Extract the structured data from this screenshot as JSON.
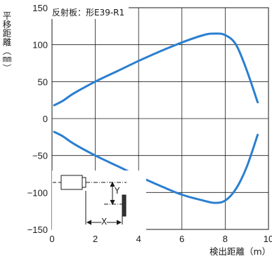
{
  "chart_data": {
    "type": "line",
    "annotation": "反射板：形E39-R1",
    "xlabel": "検出距離（m）",
    "ylabel": "平移距離（㎜）",
    "xlim": [
      0,
      10
    ],
    "ylim": [
      -150,
      150
    ],
    "x_ticks": [
      0,
      2,
      4,
      6,
      8,
      10
    ],
    "y_ticks": [
      150,
      100,
      50,
      0,
      -50,
      -100,
      -150
    ],
    "x_tick_labels": [
      "0",
      "2",
      "4",
      "6",
      "8",
      "10"
    ],
    "y_tick_labels": [
      "150",
      "100",
      "50",
      "0",
      "−50",
      "−100",
      "−150"
    ],
    "grid": true,
    "line_color": "#2a7fd0",
    "series": [
      {
        "points": [
          [
            0.1,
            18
          ],
          [
            0.5,
            24
          ],
          [
            1,
            34
          ],
          [
            2,
            50
          ],
          [
            3,
            64
          ],
          [
            4,
            78
          ],
          [
            5,
            91
          ],
          [
            6,
            103
          ],
          [
            7,
            113
          ],
          [
            7.5,
            115
          ],
          [
            8,
            113
          ],
          [
            8.5,
            100
          ],
          [
            9,
            65
          ],
          [
            9.5,
            22
          ]
        ]
      },
      {
        "points": [
          [
            0.1,
            -18
          ],
          [
            0.5,
            -24
          ],
          [
            1,
            -34
          ],
          [
            2,
            -50
          ],
          [
            3,
            -64
          ],
          [
            4,
            -78
          ],
          [
            5,
            -91
          ],
          [
            6,
            -103
          ],
          [
            7,
            -111
          ],
          [
            7.5,
            -114
          ],
          [
            8,
            -111
          ],
          [
            8.5,
            -95
          ],
          [
            9,
            -65
          ],
          [
            9.5,
            -22
          ]
        ]
      }
    ],
    "inset_labels": {
      "y": "Y",
      "x": "X"
    }
  }
}
